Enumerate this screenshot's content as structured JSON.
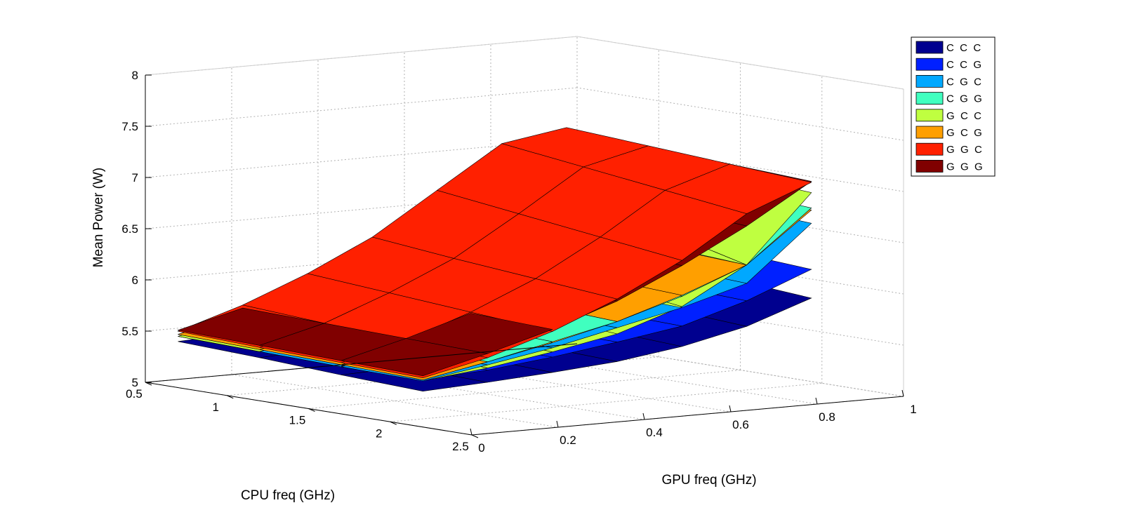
{
  "chart_data": {
    "type": "surface",
    "title": "",
    "xlabel": "CPU freq (GHz)",
    "ylabel": "GPU freq (GHz)",
    "zlabel": "Mean Power (W)",
    "xlim": [
      0.5,
      2.5
    ],
    "ylim": [
      0,
      1
    ],
    "zlim": [
      5,
      8
    ],
    "x_ticks": [
      "0.5",
      "1",
      "1.5",
      "2",
      "2.5"
    ],
    "y_ticks": [
      "0",
      "0.2",
      "0.4",
      "0.6",
      "0.8",
      "1"
    ],
    "z_ticks": [
      "5",
      "5.5",
      "6",
      "6.5",
      "7",
      "7.5",
      "8"
    ],
    "grid": true,
    "legend_position": "top-right",
    "cpu_freq": [
      0.7,
      1.2,
      1.7,
      2.2
    ],
    "gpu_freq": [
      0.0,
      0.15,
      0.3,
      0.45,
      0.6,
      0.75,
      0.9
    ],
    "series": [
      {
        "name": "C  C  C",
        "color": "#00008f",
        "z": [
          [
            5.45,
            5.48,
            5.52,
            5.58,
            5.68,
            5.85,
            6.1
          ],
          [
            5.42,
            5.45,
            5.5,
            5.56,
            5.66,
            5.82,
            6.05
          ],
          [
            5.38,
            5.4,
            5.45,
            5.5,
            5.6,
            5.75,
            5.98
          ],
          [
            5.35,
            5.38,
            5.42,
            5.47,
            5.56,
            5.7,
            5.92
          ]
        ]
      },
      {
        "name": "C  C  G",
        "color": "#0020ff",
        "z": [
          [
            5.5,
            5.55,
            5.62,
            5.7,
            5.82,
            6.02,
            6.35
          ],
          [
            5.48,
            5.52,
            5.6,
            5.68,
            5.8,
            6.0,
            6.3
          ],
          [
            5.47,
            5.51,
            5.58,
            5.67,
            5.78,
            5.98,
            6.25
          ],
          [
            5.46,
            5.5,
            5.57,
            5.66,
            5.76,
            5.95,
            6.2
          ]
        ]
      },
      {
        "name": "C  G  C",
        "color": "#00a8ff",
        "z": [
          [
            5.5,
            5.6,
            5.72,
            5.85,
            6.0,
            6.25,
            6.8
          ],
          [
            5.48,
            5.58,
            5.7,
            5.84,
            5.98,
            6.2,
            6.75
          ],
          [
            5.46,
            5.56,
            5.68,
            5.82,
            5.96,
            6.16,
            6.7
          ],
          [
            5.45,
            5.55,
            5.66,
            5.8,
            5.94,
            6.12,
            6.65
          ]
        ]
      },
      {
        "name": "C  G  G",
        "color": "#40ffbf",
        "z": [
          [
            5.52,
            5.65,
            5.82,
            6.0,
            6.2,
            6.45,
            6.95
          ],
          [
            5.5,
            5.62,
            5.78,
            5.95,
            6.15,
            6.4,
            6.9
          ],
          [
            5.48,
            5.6,
            5.75,
            5.9,
            6.1,
            6.35,
            6.85
          ],
          [
            5.46,
            5.58,
            5.72,
            5.86,
            6.05,
            6.3,
            6.8
          ]
        ]
      },
      {
        "name": "G  C  C",
        "color": "#bfff40",
        "z": [
          [
            5.5,
            5.62,
            5.8,
            6.0,
            6.4,
            6.9,
            7.1
          ],
          [
            5.48,
            5.58,
            5.72,
            5.9,
            6.2,
            6.7,
            7.05
          ],
          [
            5.46,
            5.55,
            5.66,
            5.8,
            6.05,
            6.5,
            7.0
          ],
          [
            5.45,
            5.52,
            5.62,
            5.74,
            5.95,
            6.3,
            6.95
          ]
        ]
      },
      {
        "name": "G  C  G",
        "color": "#ff9f00",
        "z": [
          [
            5.52,
            5.64,
            5.8,
            5.98,
            6.18,
            6.42,
            6.9
          ],
          [
            5.5,
            5.62,
            5.77,
            5.94,
            6.14,
            6.38,
            6.86
          ],
          [
            5.48,
            5.6,
            5.74,
            5.9,
            6.1,
            6.34,
            6.82
          ],
          [
            5.46,
            5.58,
            5.71,
            5.86,
            6.06,
            6.3,
            6.78
          ]
        ]
      },
      {
        "name": "G  G  C",
        "color": "#ff2000",
        "z": [
          [
            5.55,
            5.75,
            6.0,
            6.3,
            6.7,
            7.1,
            7.2
          ],
          [
            5.52,
            5.7,
            5.94,
            6.22,
            6.6,
            7.0,
            7.15
          ],
          [
            5.5,
            5.66,
            5.88,
            6.15,
            6.5,
            6.9,
            7.1
          ],
          [
            5.48,
            5.62,
            5.82,
            6.08,
            6.4,
            6.8,
            7.05
          ]
        ]
      },
      {
        "name": "G  G  G",
        "color": "#800000",
        "z": [
          [
            5.56,
            5.72,
            5.94,
            6.2,
            6.5,
            6.85,
            7.18
          ],
          [
            5.54,
            5.7,
            5.9,
            6.15,
            6.45,
            6.8,
            7.14
          ],
          [
            5.52,
            5.68,
            5.87,
            6.1,
            6.4,
            6.74,
            7.1
          ],
          [
            5.5,
            5.66,
            5.84,
            6.06,
            6.35,
            6.68,
            7.06
          ]
        ]
      }
    ]
  }
}
